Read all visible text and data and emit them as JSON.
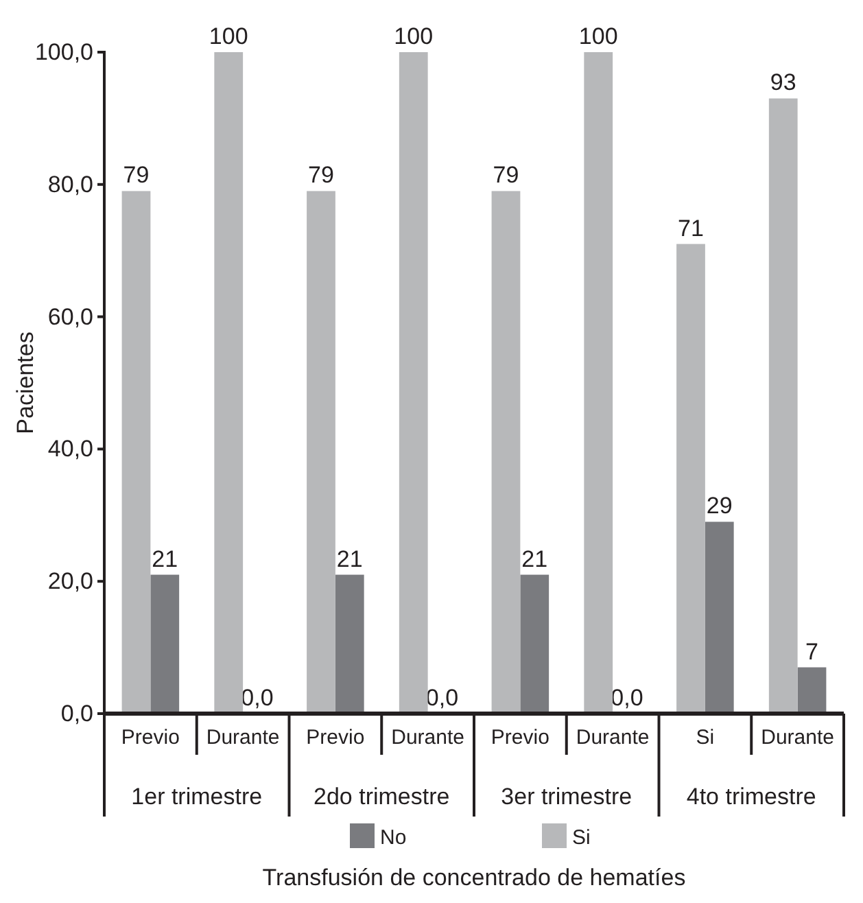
{
  "chart_data": {
    "type": "bar",
    "xlabel": "Transfusión de concentrado de hematíes",
    "ylabel": "Pacientes",
    "categories": [
      "Previo",
      "Durante",
      "Previo",
      "Durante",
      "Previo",
      "Durante",
      "Si",
      "Durante"
    ],
    "series": [
      {
        "name": "No",
        "color": "#7a7b7f",
        "values": [
          21,
          0,
          21,
          0,
          21,
          0,
          29,
          7
        ],
        "value_labels": [
          "21",
          "0,0",
          "21",
          "0,0",
          "21",
          "0,0",
          "29",
          "7"
        ]
      },
      {
        "name": "Si",
        "color": "#b7b8ba",
        "values": [
          79,
          100,
          79,
          100,
          79,
          100,
          71,
          93
        ],
        "value_labels": [
          "79",
          "100",
          "79",
          "100",
          "79",
          "100",
          "71",
          "93"
        ]
      }
    ],
    "annotations": [
      "1er trimestre",
      "2do trimestre",
      "3er trimestre",
      "4to trimestre"
    ],
    "ylim": [
      0,
      100
    ],
    "yticks": [
      {
        "value": 0,
        "label": "0,0"
      },
      {
        "value": 20,
        "label": "20,0"
      },
      {
        "value": 40,
        "label": "40,0"
      },
      {
        "value": 60,
        "label": "60,0"
      },
      {
        "value": 80,
        "label": "80,0"
      },
      {
        "value": 100,
        "label": "100,0"
      }
    ],
    "legend": "bottom",
    "grid": false
  }
}
